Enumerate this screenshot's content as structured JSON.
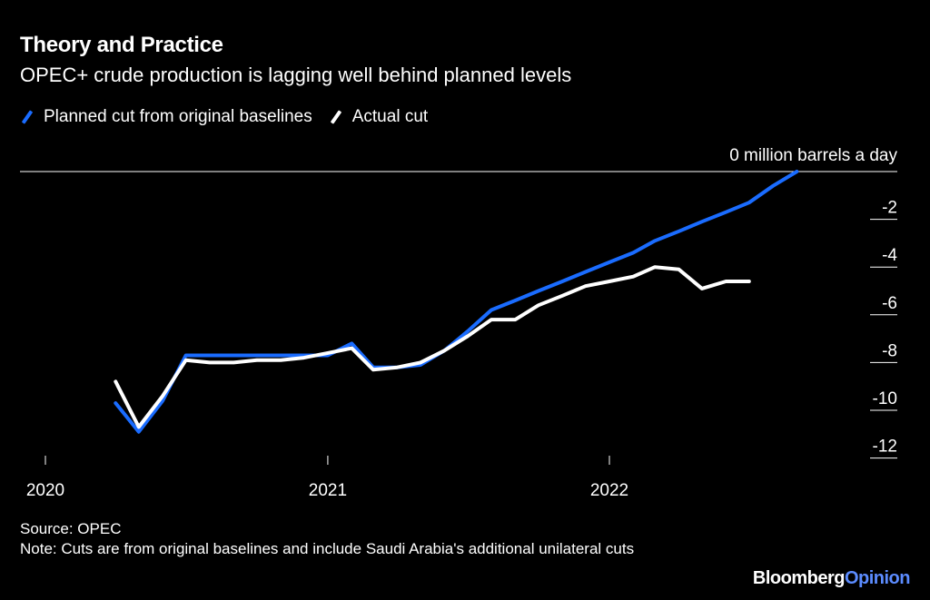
{
  "header": {
    "title": "Theory and Practice",
    "subtitle": "OPEC+ crude production is lagging well behind planned levels"
  },
  "legend": [
    {
      "name": "Planned cut from original baselines",
      "color": "#1a6cff"
    },
    {
      "name": "Actual cut",
      "color": "#ffffff"
    }
  ],
  "footer": {
    "source": "Source: OPEC",
    "note": "Note: Cuts are from original baselines and include Saudi Arabia's additional unilateral cuts"
  },
  "logo": {
    "brand": "Bloomberg",
    "section": "Opinion"
  },
  "chart_data": {
    "type": "line",
    "ylabel_top": "0 million barrels a day",
    "ylim": [
      -12.5,
      0
    ],
    "yticks": [
      0,
      -2,
      -4,
      -6,
      -8,
      -10,
      -12
    ],
    "ytick_labels": [
      "",
      "-2",
      "-4",
      "-6",
      "-8",
      "-10",
      "-12"
    ],
    "xticks": [
      {
        "date": "2020-01-01",
        "label": "2020"
      },
      {
        "date": "2021-01-01",
        "label": "2021"
      },
      {
        "date": "2022-01-01",
        "label": "2022"
      }
    ],
    "grid": false,
    "legend_position": "top-left",
    "series": [
      {
        "name": "Planned cut from original baselines",
        "color": "#1a6cff",
        "x": [
          "2020-04",
          "2020-05",
          "2020-06",
          "2020-07",
          "2020-08",
          "2020-09",
          "2020-10",
          "2020-11",
          "2020-12",
          "2021-01",
          "2021-02",
          "2021-03",
          "2021-04",
          "2021-05",
          "2021-06",
          "2021-07",
          "2021-08",
          "2021-09",
          "2021-10",
          "2021-11",
          "2021-12",
          "2022-01",
          "2022-02",
          "2022-03",
          "2022-04",
          "2022-05",
          "2022-06",
          "2022-07",
          "2022-08",
          "2022-09"
        ],
        "values": [
          -9.7,
          -10.9,
          -9.6,
          -7.7,
          -7.7,
          -7.7,
          -7.7,
          -7.7,
          -7.7,
          -7.7,
          -7.2,
          -8.2,
          -8.2,
          -8.1,
          -7.5,
          -6.7,
          -5.8,
          -5.4,
          -5.0,
          -4.6,
          -4.2,
          -3.8,
          -3.4,
          -2.9,
          -2.5,
          -2.1,
          -1.7,
          -1.3,
          -0.6,
          0.0
        ]
      },
      {
        "name": "Actual cut",
        "color": "#ffffff",
        "x": [
          "2020-04",
          "2020-05",
          "2020-06",
          "2020-07",
          "2020-08",
          "2020-09",
          "2020-10",
          "2020-11",
          "2020-12",
          "2021-01",
          "2021-02",
          "2021-03",
          "2021-04",
          "2021-05",
          "2021-06",
          "2021-07",
          "2021-08",
          "2021-09",
          "2021-10",
          "2021-11",
          "2021-12",
          "2022-01",
          "2022-02",
          "2022-03",
          "2022-04",
          "2022-05",
          "2022-06",
          "2022-07"
        ],
        "values": [
          -8.8,
          -10.7,
          -9.4,
          -7.9,
          -8.0,
          -8.0,
          -7.9,
          -7.9,
          -7.8,
          -7.6,
          -7.4,
          -8.3,
          -8.2,
          -8.0,
          -7.5,
          -6.9,
          -6.2,
          -6.2,
          -5.6,
          -5.2,
          -4.8,
          -4.6,
          -4.4,
          -4.0,
          -4.1,
          -4.9,
          -4.6,
          -4.6
        ]
      }
    ]
  }
}
